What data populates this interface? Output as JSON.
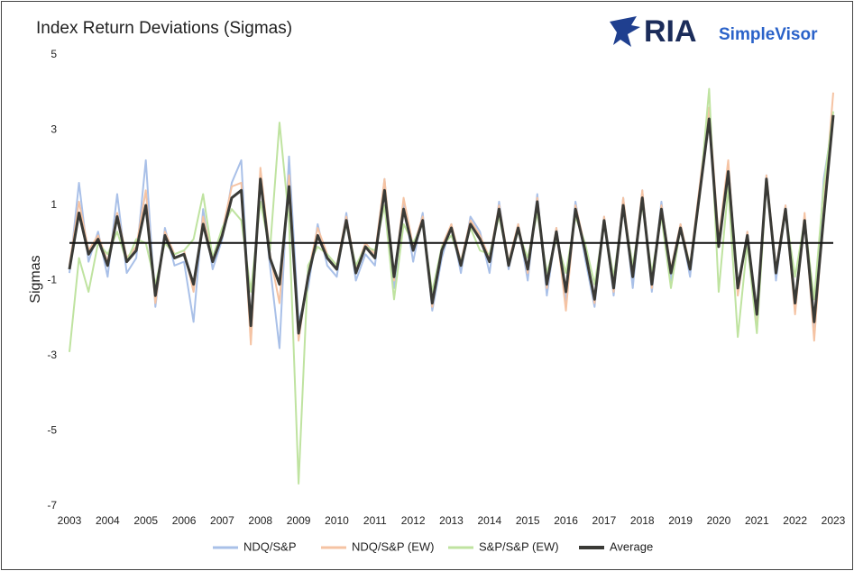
{
  "chart_data": {
    "type": "line",
    "title": "Index Return Deviations (Sigmas)",
    "logo_text": [
      "RIA",
      "SimpleVisor"
    ],
    "ylabel": "Sigmas",
    "xlim": [
      2003,
      2023
    ],
    "xticks": [
      2003,
      2004,
      2005,
      2006,
      2007,
      2008,
      2009,
      2010,
      2011,
      2012,
      2013,
      2014,
      2015,
      2016,
      2017,
      2018,
      2019,
      2020,
      2021,
      2022,
      2023
    ],
    "ylim": [
      -7,
      5
    ],
    "yticks": [
      -7,
      -5,
      -3,
      -1,
      1,
      3,
      5
    ],
    "legend": "bottom",
    "x": [
      2003,
      2003.25,
      2003.5,
      2003.75,
      2004,
      2004.25,
      2004.5,
      2004.75,
      2005,
      2005.25,
      2005.5,
      2005.75,
      2006,
      2006.25,
      2006.5,
      2006.75,
      2007,
      2007.25,
      2007.5,
      2007.75,
      2008,
      2008.25,
      2008.5,
      2008.75,
      2009,
      2009.25,
      2009.5,
      2009.75,
      2010,
      2010.25,
      2010.5,
      2010.75,
      2011,
      2011.25,
      2011.5,
      2011.75,
      2012,
      2012.25,
      2012.5,
      2012.75,
      2013,
      2013.25,
      2013.5,
      2013.75,
      2014,
      2014.25,
      2014.5,
      2014.75,
      2015,
      2015.25,
      2015.5,
      2015.75,
      2016,
      2016.25,
      2016.5,
      2016.75,
      2017,
      2017.25,
      2017.5,
      2017.75,
      2018,
      2018.25,
      2018.5,
      2018.75,
      2019,
      2019.25,
      2019.5,
      2019.75,
      2020,
      2020.25,
      2020.5,
      2020.75,
      2021,
      2021.25,
      2021.5,
      2021.75,
      2022,
      2022.25,
      2022.5,
      2022.75,
      2023
    ],
    "series": [
      {
        "name": "NDQ/S&P",
        "color": "#a9c0e8",
        "width": 2,
        "values": [
          -0.8,
          1.6,
          -0.5,
          0.3,
          -0.9,
          1.3,
          -0.8,
          -0.4,
          2.2,
          -1.7,
          0.4,
          -0.6,
          -0.5,
          -2.1,
          0.9,
          -0.7,
          0.1,
          1.6,
          2.2,
          -2.6,
          1.9,
          -0.6,
          -2.8,
          2.3,
          -2.1,
          -1.2,
          0.5,
          -0.6,
          -0.9,
          0.8,
          -1.0,
          -0.3,
          -0.6,
          1.7,
          -1.2,
          1.1,
          -0.5,
          0.8,
          -1.8,
          -0.4,
          0.5,
          -0.8,
          0.7,
          0.3,
          -0.8,
          1.1,
          -0.7,
          0.5,
          -1.0,
          1.3,
          -1.4,
          0.4,
          -1.6,
          1.1,
          -0.4,
          -1.7,
          0.7,
          -1.4,
          1.2,
          -1.2,
          1.4,
          -1.3,
          1.1,
          -1.0,
          0.5,
          -0.9,
          1.4,
          3.4,
          -0.1,
          2.1,
          -1.3,
          0.3,
          -2.0,
          1.8,
          -1.0,
          1.0,
          -1.8,
          0.7,
          -2.3,
          1.7,
          3.3
        ]
      },
      {
        "name": "NDQ/S&P (EW)",
        "color": "#f5c3a3",
        "width": 2,
        "values": [
          -0.6,
          1.1,
          -0.2,
          0.2,
          -0.5,
          0.8,
          -0.4,
          -0.1,
          1.4,
          -1.6,
          0.3,
          -0.3,
          -0.2,
          -1.3,
          0.7,
          -0.4,
          0.3,
          1.5,
          1.6,
          -2.7,
          2.0,
          -0.3,
          -1.6,
          1.8,
          -2.6,
          -0.8,
          0.4,
          -0.3,
          -0.6,
          0.7,
          -0.7,
          0.0,
          -0.3,
          1.7,
          -1.0,
          1.2,
          -0.1,
          0.7,
          -1.7,
          -0.1,
          0.5,
          -0.5,
          0.6,
          0.2,
          -0.4,
          1.0,
          -0.5,
          0.5,
          -0.8,
          1.2,
          -1.2,
          0.4,
          -1.8,
          1.0,
          -0.1,
          -1.6,
          0.7,
          -1.3,
          1.2,
          -0.9,
          1.4,
          -1.2,
          1.0,
          -0.7,
          0.5,
          -0.6,
          1.5,
          3.6,
          0.1,
          2.2,
          -1.4,
          0.3,
          -2.3,
          1.8,
          -0.7,
          1.0,
          -1.9,
          0.8,
          -2.6,
          0.9,
          4.0
        ]
      },
      {
        "name": "S&P/S&P (EW)",
        "color": "#bfe3a0",
        "width": 2,
        "values": [
          -2.9,
          -0.4,
          -1.3,
          0.0,
          -0.3,
          0.3,
          -0.5,
          0.1,
          0.0,
          -1.1,
          0.0,
          -0.3,
          -0.2,
          0.1,
          1.3,
          -0.4,
          0.4,
          0.9,
          0.6,
          -1.3,
          1.1,
          -0.2,
          3.2,
          0.6,
          -6.4,
          -0.6,
          -0.1,
          -0.3,
          -0.6,
          0.5,
          -0.6,
          -0.1,
          -0.2,
          1.0,
          -1.5,
          0.5,
          0.0,
          0.5,
          -1.3,
          -0.1,
          0.2,
          -0.5,
          0.4,
          -0.2,
          -0.3,
          0.7,
          -0.5,
          0.3,
          -0.4,
          0.8,
          -0.8,
          0.1,
          -0.8,
          0.7,
          0.0,
          -1.1,
          0.5,
          -0.9,
          0.9,
          -0.6,
          1.0,
          -0.8,
          0.7,
          -1.2,
          0.4,
          -0.6,
          1.2,
          4.1,
          -1.3,
          1.5,
          -2.5,
          0.0,
          -2.4,
          1.6,
          -0.7,
          0.8,
          -0.9,
          0.6,
          -1.5,
          1.5,
          3.5
        ]
      },
      {
        "name": "Average",
        "color": "#3a3a36",
        "width": 3,
        "values": [
          -0.7,
          0.8,
          -0.3,
          0.1,
          -0.6,
          0.7,
          -0.5,
          -0.2,
          1.0,
          -1.4,
          0.2,
          -0.4,
          -0.3,
          -1.1,
          0.5,
          -0.5,
          0.2,
          1.2,
          1.4,
          -2.2,
          1.7,
          -0.4,
          -1.1,
          1.5,
          -2.4,
          -0.9,
          0.2,
          -0.4,
          -0.7,
          0.6,
          -0.8,
          -0.1,
          -0.4,
          1.4,
          -0.9,
          0.9,
          -0.2,
          0.6,
          -1.6,
          -0.2,
          0.4,
          -0.6,
          0.5,
          0.1,
          -0.5,
          0.9,
          -0.6,
          0.4,
          -0.7,
          1.1,
          -1.1,
          0.3,
          -1.3,
          0.9,
          -0.2,
          -1.5,
          0.6,
          -1.2,
          1.0,
          -0.9,
          1.2,
          -1.1,
          0.9,
          -0.8,
          0.4,
          -0.7,
          1.3,
          3.3,
          -0.1,
          1.9,
          -1.2,
          0.2,
          -1.9,
          1.7,
          -0.8,
          0.9,
          -1.6,
          0.6,
          -2.1,
          0.7,
          3.4
        ]
      }
    ]
  }
}
